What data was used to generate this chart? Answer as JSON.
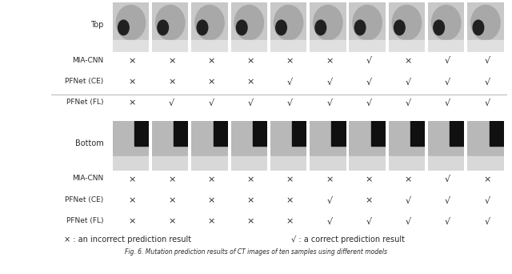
{
  "title": "Fig. 6. Mutation prediction results of CT images of ten samples using different models",
  "legend_incorrect": "× : an incorrect prediction result",
  "legend_correct": "√ : a correct prediction result",
  "top_label": "Top",
  "bottom_label": "Bottom",
  "row_labels": [
    "MIA-CNN",
    "PFNet (CE)",
    "PFNet (FL)"
  ],
  "top_predictions": [
    [
      "x",
      "x",
      "x",
      "x",
      "x",
      "x",
      "v",
      "x",
      "v",
      "v"
    ],
    [
      "x",
      "x",
      "x",
      "x",
      "v",
      "v",
      "v",
      "v",
      "v",
      "v"
    ],
    [
      "x",
      "v",
      "v",
      "v",
      "v",
      "v",
      "v",
      "v",
      "v",
      "v"
    ]
  ],
  "bottom_predictions": [
    [
      "x",
      "x",
      "x",
      "x",
      "x",
      "x",
      "x",
      "x",
      "v",
      "x"
    ],
    [
      "x",
      "x",
      "x",
      "x",
      "x",
      "v",
      "x",
      "v",
      "v",
      "v"
    ],
    [
      "x",
      "x",
      "x",
      "x",
      "x",
      "v",
      "v",
      "v",
      "v",
      "v"
    ]
  ],
  "n_samples": 10,
  "bg_color": "#ffffff",
  "text_color": "#2a2a2a",
  "line_color": "#999999",
  "img_top_colors": [
    "#888888",
    "#888888",
    "#888888",
    "#888888",
    "#888888",
    "#888888",
    "#888888",
    "#888888",
    "#888888",
    "#888888"
  ],
  "img_bg_top": "#cccccc",
  "img_bg_bottom": "#bbbbbb"
}
